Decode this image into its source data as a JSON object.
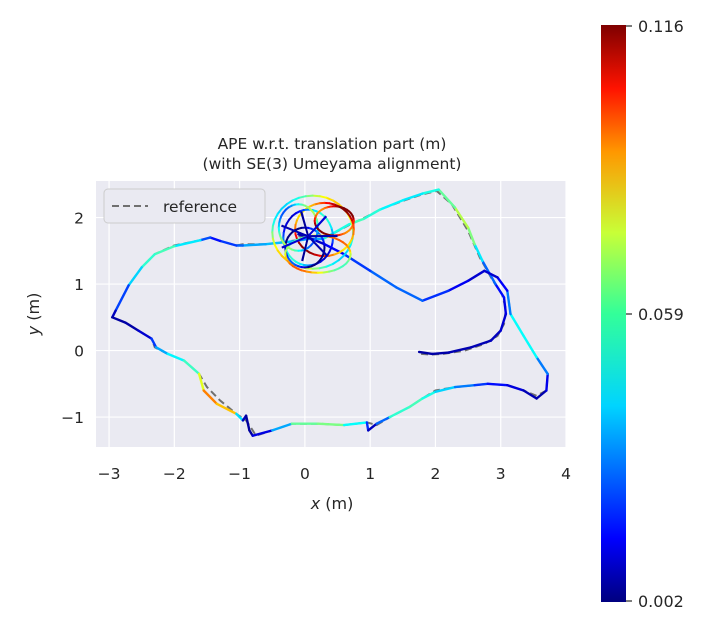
{
  "chart_data": {
    "type": "line",
    "title_line1": "APE w.r.t. translation part (m)",
    "title_line2": "(with SE(3) Umeyama alignment)",
    "xlabel_var": "x",
    "xlabel_unit": " (m)",
    "ylabel_var": "y",
    "ylabel_unit": " (m)",
    "xlim": [
      -3.2,
      4.0
    ],
    "ylim": [
      -1.45,
      2.55
    ],
    "xticks": [
      -3,
      -2,
      -1,
      0,
      1,
      2,
      3,
      4
    ],
    "yticks": [
      -1,
      0,
      1,
      2
    ],
    "xtick_labels": [
      "−3",
      "−2",
      "−1",
      "0",
      "1",
      "2",
      "3",
      "4"
    ],
    "ytick_labels": [
      "−1",
      "0",
      "1",
      "2"
    ],
    "legend": {
      "label": "reference",
      "style": "dashed",
      "color": "#707070",
      "placement": "upper-left"
    },
    "colorbar": {
      "min": 0.002,
      "mid": 0.059,
      "max": 0.116,
      "min_label": "0.002",
      "mid_label": "0.059",
      "max_label": "0.116",
      "colormap": "jet"
    },
    "background_color": "#eaeaf2",
    "reference_path": [
      [
        1.78,
        -0.05
      ],
      [
        1.92,
        -0.06
      ],
      [
        2.12,
        -0.05
      ],
      [
        2.45,
        0.0
      ],
      [
        2.75,
        0.1
      ],
      [
        2.95,
        0.22
      ],
      [
        3.05,
        0.4
      ],
      [
        3.08,
        0.62
      ],
      [
        3.02,
        0.85
      ],
      [
        2.88,
        1.05
      ],
      [
        2.68,
        1.4
      ],
      [
        2.5,
        1.8
      ],
      [
        2.25,
        2.2
      ],
      [
        2.02,
        2.4
      ],
      [
        1.8,
        2.35
      ],
      [
        1.5,
        2.25
      ],
      [
        1.15,
        2.12
      ],
      [
        0.88,
        1.98
      ],
      [
        0.7,
        1.9
      ],
      [
        0.28,
        1.68
      ],
      [
        0.05,
        1.68
      ],
      [
        -0.2,
        1.65
      ],
      [
        -0.6,
        1.6
      ],
      [
        -0.95,
        1.6
      ],
      [
        -1.05,
        1.58
      ],
      [
        -1.3,
        1.65
      ],
      [
        -1.45,
        1.7
      ],
      [
        -1.6,
        1.66
      ],
      [
        -2.0,
        1.58
      ],
      [
        -2.3,
        1.45
      ],
      [
        -2.5,
        1.25
      ],
      [
        -2.7,
        0.98
      ],
      [
        -2.9,
        0.6
      ],
      [
        -2.95,
        0.5
      ],
      [
        -2.75,
        0.42
      ],
      [
        -2.55,
        0.3
      ],
      [
        -2.35,
        0.18
      ],
      [
        -2.3,
        0.05
      ],
      [
        -2.1,
        -0.05
      ],
      [
        -1.85,
        -0.15
      ],
      [
        -1.62,
        -0.35
      ],
      [
        -1.5,
        -0.55
      ],
      [
        -1.3,
        -0.75
      ],
      [
        -1.05,
        -0.95
      ],
      [
        -0.9,
        -1.05
      ],
      [
        -0.8,
        -1.2
      ],
      [
        -0.75,
        -1.28
      ],
      [
        -0.5,
        -1.2
      ],
      [
        -0.2,
        -1.1
      ],
      [
        0.2,
        -1.1
      ],
      [
        0.6,
        -1.12
      ],
      [
        0.95,
        -1.08
      ],
      [
        1.1,
        -1.12
      ],
      [
        1.3,
        -1.0
      ],
      [
        1.6,
        -0.85
      ],
      [
        1.8,
        -0.72
      ],
      [
        2.0,
        -0.6
      ],
      [
        2.3,
        -0.55
      ],
      [
        2.6,
        -0.52
      ],
      [
        2.8,
        -0.5
      ],
      [
        3.1,
        -0.52
      ],
      [
        3.35,
        -0.6
      ],
      [
        3.55,
        -0.68
      ],
      [
        3.7,
        -0.6
      ],
      [
        3.72,
        -0.35
      ],
      [
        3.55,
        -0.1
      ],
      [
        3.35,
        0.22
      ],
      [
        3.15,
        0.55
      ],
      [
        3.1,
        0.9
      ],
      [
        2.95,
        1.1
      ],
      [
        2.75,
        1.2
      ],
      [
        2.5,
        1.05
      ],
      [
        2.2,
        0.9
      ],
      [
        1.8,
        0.75
      ],
      [
        1.4,
        0.95
      ],
      [
        1.0,
        1.2
      ],
      [
        0.6,
        1.45
      ],
      [
        0.3,
        1.6
      ],
      [
        0.05,
        1.7
      ],
      [
        -0.1,
        1.72
      ]
    ],
    "estimate_path": [
      {
        "x": 1.75,
        "y": -0.02,
        "e": 0.006
      },
      {
        "x": 1.95,
        "y": -0.05,
        "e": 0.006
      },
      {
        "x": 2.2,
        "y": -0.03,
        "e": 0.007
      },
      {
        "x": 2.55,
        "y": 0.05,
        "e": 0.008
      },
      {
        "x": 2.85,
        "y": 0.15,
        "e": 0.008
      },
      {
        "x": 3.0,
        "y": 0.3,
        "e": 0.01
      },
      {
        "x": 3.08,
        "y": 0.55,
        "e": 0.012
      },
      {
        "x": 3.05,
        "y": 0.8,
        "e": 0.015
      },
      {
        "x": 2.92,
        "y": 1.0,
        "e": 0.02
      },
      {
        "x": 2.72,
        "y": 1.35,
        "e": 0.035
      },
      {
        "x": 2.6,
        "y": 1.6,
        "e": 0.05
      },
      {
        "x": 2.5,
        "y": 1.85,
        "e": 0.068
      },
      {
        "x": 2.3,
        "y": 2.15,
        "e": 0.062
      },
      {
        "x": 2.05,
        "y": 2.42,
        "e": 0.05
      },
      {
        "x": 1.8,
        "y": 2.36,
        "e": 0.045
      },
      {
        "x": 1.5,
        "y": 2.26,
        "e": 0.04
      },
      {
        "x": 1.15,
        "y": 2.12,
        "e": 0.048
      },
      {
        "x": 0.9,
        "y": 1.98,
        "e": 0.05
      },
      {
        "x": 0.68,
        "y": 1.9,
        "e": 0.055
      },
      {
        "x": 0.28,
        "y": 1.68,
        "e": 0.04
      },
      {
        "x": 0.05,
        "y": 1.68,
        "e": 0.03
      },
      {
        "x": -0.2,
        "y": 1.64,
        "e": 0.035
      },
      {
        "x": -0.6,
        "y": 1.6,
        "e": 0.04
      },
      {
        "x": -0.95,
        "y": 1.58,
        "e": 0.03
      },
      {
        "x": -1.05,
        "y": 1.58,
        "e": 0.025
      },
      {
        "x": -1.3,
        "y": 1.65,
        "e": 0.02
      },
      {
        "x": -1.45,
        "y": 1.7,
        "e": 0.015
      },
      {
        "x": -1.6,
        "y": 1.66,
        "e": 0.035
      },
      {
        "x": -2.0,
        "y": 1.57,
        "e": 0.05
      },
      {
        "x": -2.3,
        "y": 1.45,
        "e": 0.055
      },
      {
        "x": -2.5,
        "y": 1.25,
        "e": 0.045
      },
      {
        "x": -2.7,
        "y": 0.98,
        "e": 0.035
      },
      {
        "x": -2.9,
        "y": 0.6,
        "e": 0.012
      },
      {
        "x": -2.95,
        "y": 0.5,
        "e": 0.006
      },
      {
        "x": -2.75,
        "y": 0.42,
        "e": 0.006
      },
      {
        "x": -2.55,
        "y": 0.3,
        "e": 0.007
      },
      {
        "x": -2.35,
        "y": 0.18,
        "e": 0.015
      },
      {
        "x": -2.28,
        "y": 0.05,
        "e": 0.03
      },
      {
        "x": -2.1,
        "y": -0.05,
        "e": 0.04
      },
      {
        "x": -1.85,
        "y": -0.15,
        "e": 0.048
      },
      {
        "x": -1.62,
        "y": -0.35,
        "e": 0.055
      },
      {
        "x": -1.55,
        "y": -0.6,
        "e": 0.085
      },
      {
        "x": -1.35,
        "y": -0.8,
        "e": 0.09
      },
      {
        "x": -1.05,
        "y": -0.95,
        "e": 0.07
      },
      {
        "x": -0.95,
        "y": -1.05,
        "e": 0.012
      },
      {
        "x": -0.9,
        "y": -0.98,
        "e": 0.006
      },
      {
        "x": -0.85,
        "y": -1.2,
        "e": 0.005
      },
      {
        "x": -0.8,
        "y": -1.28,
        "e": 0.006
      },
      {
        "x": -0.5,
        "y": -1.2,
        "e": 0.02
      },
      {
        "x": -0.2,
        "y": -1.1,
        "e": 0.05
      },
      {
        "x": 0.2,
        "y": -1.1,
        "e": 0.062
      },
      {
        "x": 0.6,
        "y": -1.12,
        "e": 0.055
      },
      {
        "x": 0.95,
        "y": -1.08,
        "e": 0.035
      },
      {
        "x": 0.97,
        "y": -1.2,
        "e": 0.008
      },
      {
        "x": 1.1,
        "y": -1.1,
        "e": 0.01
      },
      {
        "x": 1.3,
        "y": -1.0,
        "e": 0.045
      },
      {
        "x": 1.6,
        "y": -0.85,
        "e": 0.055
      },
      {
        "x": 1.8,
        "y": -0.72,
        "e": 0.05
      },
      {
        "x": 2.0,
        "y": -0.62,
        "e": 0.045
      },
      {
        "x": 2.3,
        "y": -0.55,
        "e": 0.035
      },
      {
        "x": 2.6,
        "y": -0.52,
        "e": 0.025
      },
      {
        "x": 2.8,
        "y": -0.5,
        "e": 0.02
      },
      {
        "x": 3.1,
        "y": -0.52,
        "e": 0.015
      },
      {
        "x": 3.35,
        "y": -0.6,
        "e": 0.01
      },
      {
        "x": 3.55,
        "y": -0.72,
        "e": 0.006
      },
      {
        "x": 3.7,
        "y": -0.6,
        "e": 0.008
      },
      {
        "x": 3.72,
        "y": -0.35,
        "e": 0.02
      },
      {
        "x": 3.55,
        "y": -0.1,
        "e": 0.04
      },
      {
        "x": 3.35,
        "y": 0.22,
        "e": 0.05
      },
      {
        "x": 3.15,
        "y": 0.55,
        "e": 0.04
      },
      {
        "x": 3.1,
        "y": 0.9,
        "e": 0.02
      },
      {
        "x": 2.95,
        "y": 1.1,
        "e": 0.012
      },
      {
        "x": 2.75,
        "y": 1.2,
        "e": 0.01
      },
      {
        "x": 2.5,
        "y": 1.05,
        "e": 0.012
      },
      {
        "x": 2.2,
        "y": 0.9,
        "e": 0.018
      },
      {
        "x": 1.8,
        "y": 0.75,
        "e": 0.025
      },
      {
        "x": 1.4,
        "y": 0.95,
        "e": 0.03
      },
      {
        "x": 1.0,
        "y": 1.2,
        "e": 0.025
      },
      {
        "x": 0.6,
        "y": 1.45,
        "e": 0.02
      },
      {
        "x": 0.3,
        "y": 1.6,
        "e": 0.012
      },
      {
        "x": 0.05,
        "y": 1.7,
        "e": 0.008
      },
      {
        "x": -0.1,
        "y": 1.75,
        "e": 0.006
      }
    ],
    "loops": [
      {
        "cx": 0.12,
        "cy": 1.78,
        "rx": 0.62,
        "ry": 0.55,
        "e": 0.06
      },
      {
        "cx": 0.3,
        "cy": 1.82,
        "rx": 0.45,
        "ry": 0.4,
        "e": 0.095
      },
      {
        "cx": 0.05,
        "cy": 1.7,
        "rx": 0.38,
        "ry": 0.42,
        "e": 0.03
      },
      {
        "cx": 0.0,
        "cy": 1.55,
        "rx": 0.3,
        "ry": 0.3,
        "e": 0.008
      },
      {
        "cx": 0.2,
        "cy": 1.45,
        "rx": 0.5,
        "ry": 0.28,
        "e": 0.072
      },
      {
        "cx": -0.1,
        "cy": 1.85,
        "rx": 0.3,
        "ry": 0.35,
        "e": 0.045
      },
      {
        "cx": 0.45,
        "cy": 1.95,
        "rx": 0.3,
        "ry": 0.22,
        "e": 0.105
      }
    ]
  }
}
